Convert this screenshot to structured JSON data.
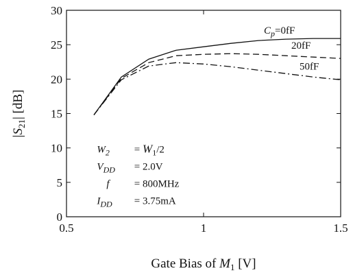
{
  "chart_data": {
    "type": "line",
    "xlabel": {
      "prefix": "Gate Bias of ",
      "var": "M",
      "sub": "1",
      "suffix": " [V]"
    },
    "ylabel": {
      "open": "|",
      "var": "S",
      "sub": "21",
      "close": "| [dB]"
    },
    "xlim": [
      0.5,
      1.5
    ],
    "ylim": [
      0,
      30
    ],
    "xticks": [
      0.5,
      1,
      1.5
    ],
    "xtick_labels": [
      "0.5",
      "1",
      "1.5"
    ],
    "yticks": [
      0,
      5,
      10,
      15,
      20,
      25,
      30
    ],
    "ytick_labels": [
      "0",
      "5",
      "10",
      "15",
      "20",
      "25",
      "30"
    ],
    "grid": false,
    "series": [
      {
        "name": "Cp=0fF",
        "style": "solid",
        "x": [
          0.6,
          0.7,
          0.8,
          0.9,
          1.0,
          1.1,
          1.2,
          1.3,
          1.4,
          1.5
        ],
        "y": [
          14.8,
          20.3,
          22.9,
          24.2,
          24.7,
          25.2,
          25.6,
          25.8,
          25.9,
          25.9
        ]
      },
      {
        "name": "20fF",
        "style": "dashed",
        "x": [
          0.6,
          0.7,
          0.8,
          0.9,
          1.0,
          1.1,
          1.2,
          1.3,
          1.4,
          1.5
        ],
        "y": [
          14.8,
          20.1,
          22.4,
          23.4,
          23.6,
          23.7,
          23.6,
          23.4,
          23.2,
          23.0
        ]
      },
      {
        "name": "50fF",
        "style": "dashdot",
        "x": [
          0.6,
          0.7,
          0.8,
          0.9,
          1.0,
          1.1,
          1.2,
          1.3,
          1.4,
          1.5
        ],
        "y": [
          14.8,
          19.9,
          21.9,
          22.4,
          22.2,
          21.8,
          21.3,
          20.8,
          20.3,
          19.9
        ]
      }
    ],
    "series_labels": [
      {
        "var": "C",
        "sub": "p",
        "text": "=0fF",
        "x": 1.22,
        "y": 26.6
      },
      {
        "var": "",
        "sub": "",
        "text": "20fF",
        "x": 1.32,
        "y": 24.4
      },
      {
        "var": "",
        "sub": "",
        "text": "50fF",
        "x": 1.35,
        "y": 21.4
      }
    ],
    "annotations": [
      {
        "var": "W",
        "sub": "2",
        "rhs": "= W",
        "rhs_sub": "1",
        "rhs_tail": "/2"
      },
      {
        "var": "V",
        "sub": "DD",
        "rhs": "= 2.0V",
        "rhs_sub": "",
        "rhs_tail": ""
      },
      {
        "var": "f",
        "sub": "",
        "rhs": "= 800MHz",
        "rhs_sub": "",
        "rhs_tail": ""
      },
      {
        "var": "I",
        "sub": "DD",
        "rhs": "= 3.75mA",
        "rhs_sub": "",
        "rhs_tail": ""
      }
    ]
  }
}
